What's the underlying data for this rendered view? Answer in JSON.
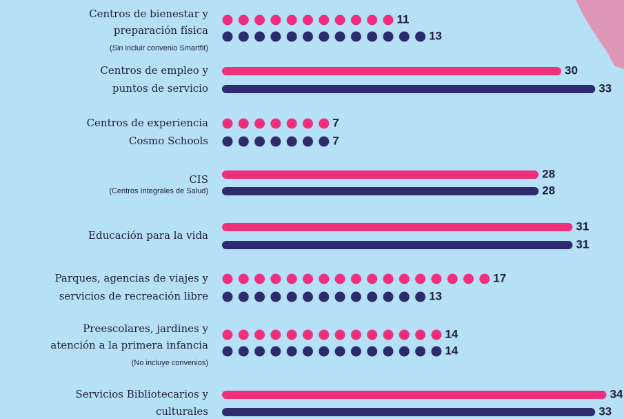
{
  "chart_data": {
    "type": "bar",
    "categories": [
      [
        "Centros de bienestar y",
        "preparación física"
      ],
      [
        "Centros de empleo y",
        "puntos de servicio"
      ],
      [
        "Centros de experiencia",
        "Cosmo Schools"
      ],
      [
        "CIS"
      ],
      [
        "Educación para la vida"
      ],
      [
        "Parques, agencias de viajes y",
        "servicios de recreación libre"
      ],
      [
        "Preescolares, jardines y",
        "atención a la primera infancia"
      ],
      [
        "Servicios Bibliotecarios y",
        "culturales"
      ]
    ],
    "notes": [
      "(Sin incluir convenio Smartfit)",
      null,
      null,
      "(Centros Integrales de Salud)",
      null,
      null,
      "(No incluye convenios)",
      null
    ],
    "dotted": [
      true,
      false,
      true,
      false,
      false,
      true,
      true,
      false
    ],
    "series": [
      {
        "color": "#ee2f7b",
        "values": [
          11,
          30,
          7,
          28,
          31,
          17,
          14,
          34
        ]
      },
      {
        "color": "#2d2a6e",
        "values": [
          13,
          33,
          7,
          28,
          31,
          13,
          14,
          33
        ]
      }
    ]
  }
}
